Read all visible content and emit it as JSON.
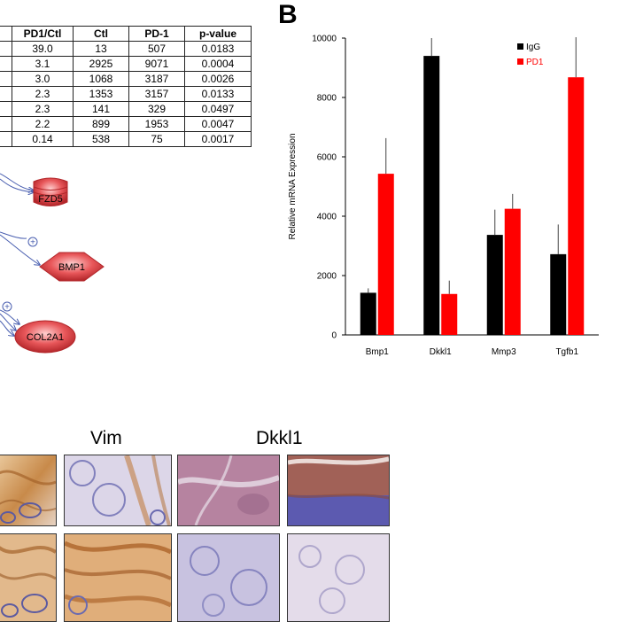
{
  "table": {
    "headers": [
      "PD1/Ctl",
      "Ctl",
      "PD-1",
      "p-value"
    ],
    "rows": [
      [
        "39.0",
        "13",
        "507",
        "0.0183"
      ],
      [
        "3.1",
        "2925",
        "9071",
        "0.0004"
      ],
      [
        "3.0",
        "1068",
        "3187",
        "0.0026"
      ],
      [
        "2.3",
        "1353",
        "3157",
        "0.0133"
      ],
      [
        "2.3",
        "141",
        "329",
        "0.0497"
      ],
      [
        "2.2",
        "899",
        "1953",
        "0.0047"
      ],
      [
        "0.14",
        "538",
        "75",
        "0.0017"
      ]
    ]
  },
  "panel_b_letter": "B",
  "network": {
    "nodes": [
      "FZD5",
      "BMP1",
      "COL2A1"
    ],
    "colors": {
      "fill": "#e8575a",
      "edge": "#4a5fb0"
    }
  },
  "chart_data": {
    "type": "bar",
    "categories": [
      "Bmp1",
      "Dkkl1",
      "Mmp3",
      "Tgfb1"
    ],
    "series": [
      {
        "name": "IgG",
        "values": [
          1420,
          9400,
          3370,
          2720
        ],
        "errors": [
          150,
          600,
          850,
          1000
        ],
        "color": "#000000"
      },
      {
        "name": "PD1",
        "values": [
          5430,
          1380,
          4250,
          8680
        ],
        "errors": [
          1200,
          450,
          500,
          1350
        ],
        "color": "#ff0000"
      }
    ],
    "ylabel": "Relative mRNA Expression",
    "ylim": [
      0,
      10000
    ],
    "yticks": [
      "0",
      "2000",
      "4000",
      "6000",
      "8000",
      "10000"
    ],
    "legend": "top-left",
    "grid": false
  },
  "micrographs": {
    "titles": [
      "Vim",
      "Dkkl1"
    ]
  }
}
